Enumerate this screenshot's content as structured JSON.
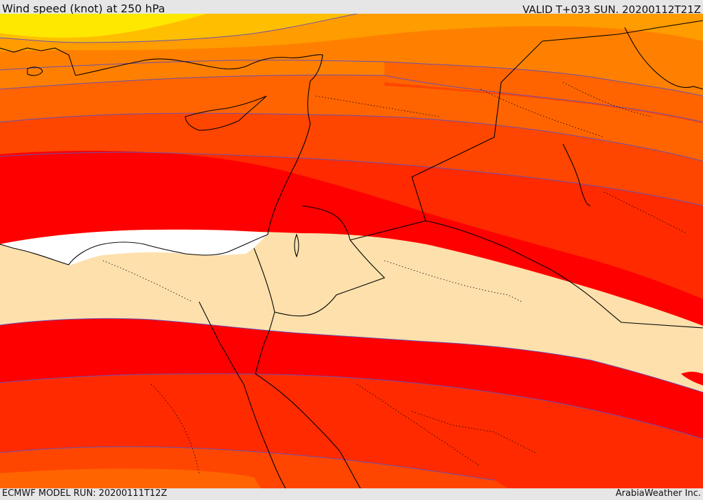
{
  "header": {
    "title": "Wind speed (knot) at 250 hPa",
    "valid_time": "VALID T+033 SUN. 20200112T21Z"
  },
  "footer": {
    "model_run": "ECMWF MODEL RUN: 20200111T12Z",
    "credit": "ArabiaWeather Inc."
  },
  "palette": {
    "yellow": "#ffe800",
    "amber": "#ffbf00",
    "orange_light": "#ff9c00",
    "orange": "#ff8000",
    "orange_dark": "#ff6400",
    "red_orange": "#ff4600",
    "red_light": "#ff2a00",
    "red": "#ff0000",
    "calm": "#fde0ac",
    "white": "#ffffff",
    "contour": "#6a4fb0",
    "coast": "#000000"
  }
}
